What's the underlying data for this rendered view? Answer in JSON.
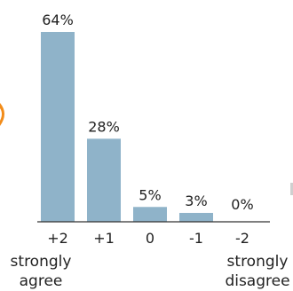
{
  "chart_data": {
    "type": "bar",
    "categories": [
      "+2",
      "+1",
      "0",
      "-1",
      "-2"
    ],
    "values": [
      64,
      28,
      5,
      3,
      0
    ],
    "value_labels": [
      "64%",
      "28%",
      "5%",
      "3%",
      "0%"
    ],
    "ylim": [
      0,
      64
    ],
    "grid": false,
    "end_labels": {
      "left": [
        "strongly",
        "agree"
      ],
      "right": [
        "strongly",
        "disagree"
      ]
    },
    "colors": {
      "bar": "#8fb3c9",
      "axis": "#333333",
      "text": "#222222"
    }
  }
}
